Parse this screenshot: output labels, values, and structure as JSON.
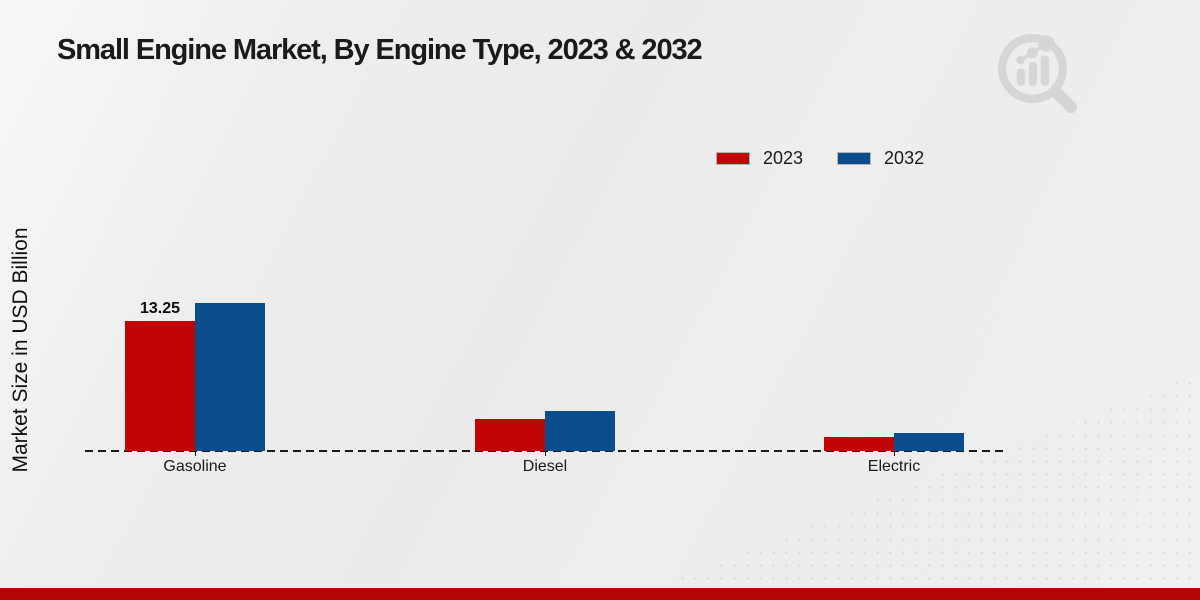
{
  "title": "Small Engine Market, By Engine Type, 2023 & 2032",
  "y_axis_label": "Market Size in USD Billion",
  "legend": {
    "position": "top-right",
    "items": [
      "2023",
      "2032"
    ]
  },
  "colors": {
    "series_2023": "#c10505",
    "series_2032": "#0a4c8c",
    "axis_dashed": "#1a1a1a",
    "footer_bar": "#b30505",
    "watermark": "#d6d6d6"
  },
  "chart_data": {
    "type": "bar",
    "title": "Small Engine Market, By Engine Type, 2023 & 2032",
    "ylabel": "Market Size in USD Billion",
    "xlabel": "",
    "categories": [
      "Gasoline",
      "Diesel",
      "Electric"
    ],
    "series": [
      {
        "name": "2023",
        "color": "#c10505",
        "values": [
          13.25,
          3.25,
          1.4
        ]
      },
      {
        "name": "2032",
        "color": "#0a4c8c",
        "values": [
          15.1,
          4.1,
          1.8
        ]
      }
    ],
    "annotations": [
      {
        "category": "Gasoline",
        "series": "2023",
        "text": "13.25"
      }
    ],
    "ylim": [
      0,
      16
    ],
    "grid": false,
    "y_ticks_visible": false,
    "baseline_style": "dashed",
    "legend_position": "top-right"
  },
  "logo": {
    "name": "magnifier-bar-chart-watermark"
  }
}
